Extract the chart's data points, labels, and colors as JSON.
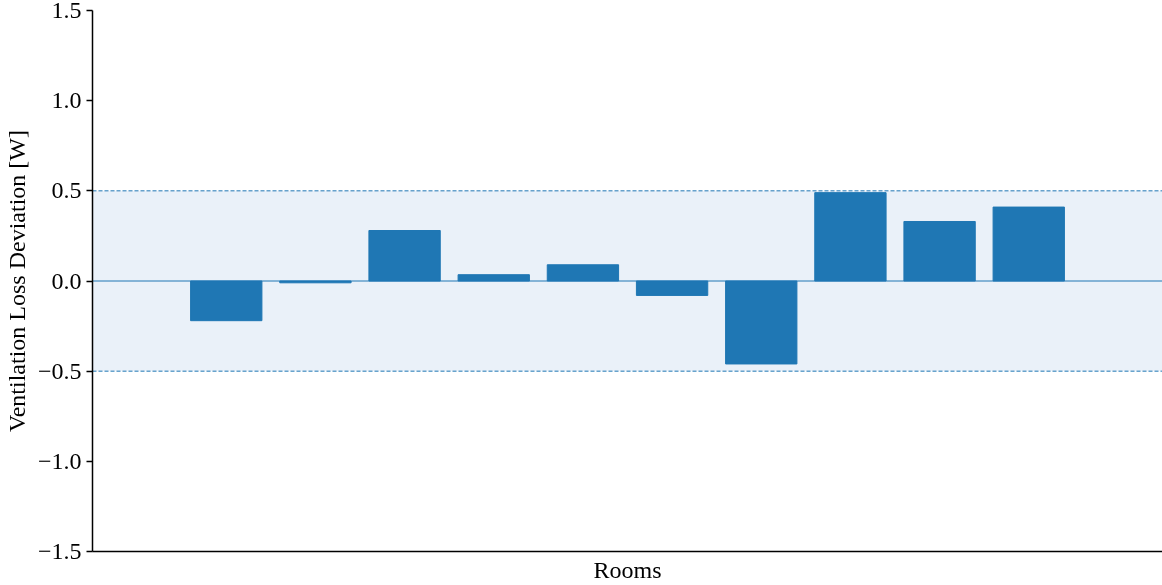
{
  "chart_data": {
    "type": "bar",
    "xlabel": "Rooms",
    "ylabel": "Ventilation Loss Deviation [W]",
    "categories": [
      null,
      null,
      null,
      null,
      null,
      null,
      null,
      null,
      null,
      null,
      null,
      null
    ],
    "values": [
      null,
      -0.22,
      -0.01,
      0.28,
      0.035,
      0.09,
      -0.08,
      -0.46,
      0.49,
      0.33,
      0.41,
      null
    ],
    "color": "#1f77b4",
    "ylim": [
      -1.5,
      1.5
    ],
    "yticks": [
      {
        "value": -1.5,
        "label": "−1.5"
      },
      {
        "value": -1.0,
        "label": "−1.0"
      },
      {
        "value": -0.5,
        "label": "−0.5"
      },
      {
        "value": 0.0,
        "label": "0.0"
      },
      {
        "value": 0.5,
        "label": "0.5"
      },
      {
        "value": 1.0,
        "label": "1.0"
      },
      {
        "value": 1.5,
        "label": "1.5"
      }
    ],
    "bands": [
      {
        "axis": "y",
        "from": -0.5,
        "to": 0.5,
        "color": "#eaf1f9"
      }
    ],
    "ref_lines": [
      {
        "axis": "y",
        "value": 0.5,
        "color": "#1f77b4",
        "line_style": "dashed"
      },
      {
        "axis": "y",
        "value": -0.5,
        "color": "#1f77b4",
        "line_style": "dashed"
      },
      {
        "axis": "y",
        "value": 0,
        "color": "#1f77b4",
        "line_style": "solid"
      }
    ],
    "grid": false
  }
}
